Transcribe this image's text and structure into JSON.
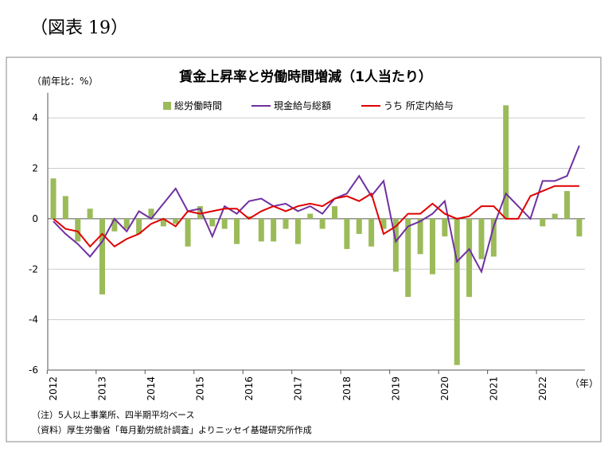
{
  "header": "（図表 19）",
  "chart_data": {
    "type": "bar_line",
    "title": "賃金上昇率と労働時間増減（1人当たり）",
    "y_label": "（前年比：%）",
    "x_label": "（年）",
    "notes": [
      "（注）5人以上事業所、四半期平均ベース",
      "（資料）厚生労働省「毎月勤労統計調査」よりニッセイ基礎研究所作成"
    ],
    "categories": [
      "2012",
      null,
      null,
      null,
      "2013",
      null,
      null,
      null,
      "2014",
      null,
      null,
      null,
      "2015",
      null,
      null,
      null,
      "2016",
      null,
      null,
      null,
      "2017",
      null,
      null,
      null,
      "2018",
      null,
      null,
      null,
      "2019",
      null,
      null,
      null,
      "2020",
      null,
      null,
      null,
      "2021",
      null,
      null,
      null,
      "2022",
      null,
      null,
      null
    ],
    "series": [
      {
        "name": "総労働時間",
        "kind": "bar",
        "color": "#9bbb59",
        "values": [
          1.6,
          0.9,
          -0.9,
          0.4,
          -3.0,
          -0.5,
          -0.4,
          -0.6,
          0.4,
          -0.3,
          -0.2,
          -1.1,
          0.5,
          -0.3,
          -0.4,
          -1.0,
          0.1,
          -0.9,
          -0.9,
          -0.4,
          -1.0,
          0.2,
          -0.4,
          0.5,
          -1.2,
          -0.6,
          -1.1,
          -0.4,
          -2.1,
          -3.1,
          -1.4,
          -2.2,
          -0.7,
          -5.8,
          -3.1,
          -1.6,
          -1.5,
          4.5,
          0.0,
          0.0,
          -0.3,
          0.2,
          1.1,
          -0.7
        ]
      },
      {
        "name": "現金給与総額",
        "kind": "line",
        "color": "#7030a0",
        "values": [
          -0.1,
          -0.6,
          -1.0,
          -1.5,
          -0.9,
          0.0,
          -0.5,
          0.3,
          0.0,
          0.6,
          1.2,
          0.3,
          0.4,
          -0.7,
          0.5,
          0.2,
          0.7,
          0.8,
          0.5,
          0.6,
          0.3,
          0.5,
          0.2,
          0.8,
          1.0,
          1.7,
          0.9,
          1.5,
          -0.9,
          -0.3,
          -0.1,
          0.2,
          0.7,
          -1.7,
          -1.2,
          -2.1,
          -0.3,
          1.0,
          0.5,
          0.0,
          1.5,
          1.5,
          1.7,
          2.9
        ]
      },
      {
        "name": "うち 所定内給与",
        "kind": "line",
        "color": "#e00000",
        "values": [
          0.0,
          -0.4,
          -0.5,
          -1.1,
          -0.6,
          -1.1,
          -0.8,
          -0.6,
          -0.2,
          0.0,
          -0.3,
          0.3,
          0.2,
          0.3,
          0.4,
          0.4,
          0.0,
          0.3,
          0.5,
          0.3,
          0.5,
          0.6,
          0.5,
          0.8,
          0.9,
          0.7,
          1.0,
          -0.6,
          -0.3,
          0.2,
          0.2,
          0.6,
          0.2,
          0.0,
          0.1,
          0.5,
          0.5,
          0.0,
          0.0,
          0.9,
          1.1,
          1.3,
          1.3,
          1.3
        ]
      }
    ],
    "ylim": [
      -6,
      5
    ],
    "yticks": [
      4,
      2,
      0,
      -2,
      -4,
      -6
    ],
    "grid": true
  }
}
